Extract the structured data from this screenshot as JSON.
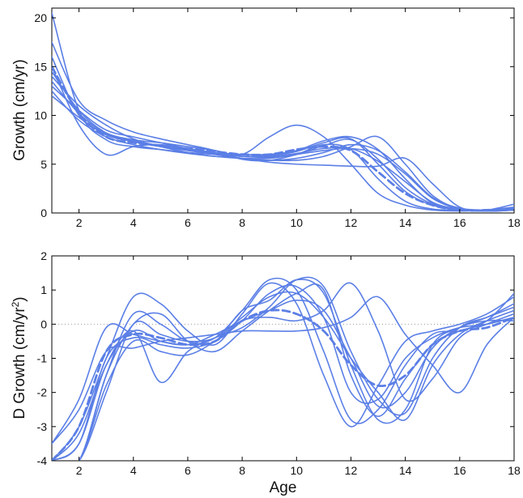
{
  "chart_data": [
    {
      "type": "line",
      "title": "",
      "xlabel": "",
      "ylabel": "Growth (cm/yr)",
      "xlim": [
        1,
        18
      ],
      "ylim": [
        0,
        21
      ],
      "xticks": [
        2,
        4,
        6,
        8,
        10,
        12,
        14,
        16,
        18
      ],
      "yticks": [
        0,
        5,
        10,
        15,
        20
      ],
      "grid": false,
      "line_color": "#5b7fe6",
      "x": [
        1,
        2,
        3,
        4,
        5,
        6,
        7,
        8,
        9,
        10,
        11,
        12,
        13,
        14,
        15,
        16,
        17,
        18
      ],
      "series": [
        {
          "values": [
            20.5,
            10.5,
            7.5,
            6.8,
            6.5,
            6.2,
            6.0,
            5.8,
            5.9,
            6.3,
            7.2,
            7.6,
            5.0,
            2.2,
            0.8,
            0.4,
            0.3,
            0.5
          ],
          "style": "solid"
        },
        {
          "values": [
            17.5,
            11.5,
            9.5,
            8.3,
            7.6,
            7.0,
            6.4,
            5.5,
            5.4,
            6.0,
            7.0,
            6.5,
            3.5,
            1.2,
            0.4,
            0.3,
            0.2,
            0.4
          ],
          "style": "solid"
        },
        {
          "values": [
            16.0,
            10.0,
            8.2,
            7.5,
            7.2,
            6.8,
            6.4,
            6.0,
            7.8,
            9.0,
            7.8,
            5.0,
            2.0,
            0.8,
            0.3,
            0.2,
            0.3,
            0.6
          ],
          "style": "solid"
        },
        {
          "values": [
            15.0,
            9.0,
            6.0,
            6.8,
            7.0,
            6.6,
            6.2,
            6.0,
            6.0,
            6.4,
            7.4,
            7.8,
            6.5,
            3.5,
            1.0,
            0.3,
            0.3,
            0.5
          ],
          "style": "solid"
        },
        {
          "values": [
            14.0,
            11.0,
            9.0,
            7.6,
            6.8,
            6.2,
            5.8,
            5.6,
            5.6,
            6.0,
            6.4,
            6.6,
            6.0,
            4.0,
            1.5,
            0.4,
            0.2,
            0.3
          ],
          "style": "solid"
        },
        {
          "values": [
            13.0,
            10.5,
            8.5,
            7.8,
            7.2,
            6.6,
            6.0,
            5.6,
            5.4,
            5.6,
            6.2,
            7.0,
            6.4,
            4.2,
            1.6,
            0.5,
            0.3,
            0.4
          ],
          "style": "solid"
        },
        {
          "values": [
            12.5,
            9.5,
            7.8,
            7.0,
            6.5,
            6.1,
            5.8,
            5.6,
            5.2,
            5.0,
            4.9,
            4.8,
            4.8,
            5.6,
            3.0,
            0.6,
            0.2,
            0.3
          ],
          "style": "solid"
        },
        {
          "values": [
            12.0,
            9.8,
            8.0,
            7.3,
            6.8,
            6.4,
            6.0,
            5.6,
            5.4,
            5.4,
            5.8,
            6.8,
            7.8,
            5.0,
            1.8,
            0.4,
            0.2,
            0.3
          ],
          "style": "solid"
        },
        {
          "values": [
            14.5,
            10.5,
            8.2,
            7.4,
            6.9,
            6.5,
            6.1,
            5.8,
            5.7,
            6.0,
            6.9,
            7.5,
            5.5,
            2.6,
            0.9,
            0.3,
            0.3,
            0.9
          ],
          "style": "solid"
        },
        {
          "values": [
            13.5,
            10.2,
            8.1,
            7.4,
            6.9,
            6.5,
            6.1,
            5.8,
            5.8,
            6.1,
            6.6,
            6.6,
            5.3,
            3.2,
            1.1,
            0.4,
            0.3,
            0.5
          ],
          "style": "solid"
        },
        {
          "values": [
            15.0,
            10.2,
            7.8,
            7.2,
            6.9,
            6.6,
            6.3,
            6.0,
            6.0,
            6.5,
            6.8,
            6.4,
            4.2,
            2.0,
            0.8,
            0.3,
            0.3,
            0.5
          ],
          "style": "dashed"
        }
      ]
    },
    {
      "type": "line",
      "title": "",
      "xlabel": "Age",
      "ylabel": "D Growth (cm/yr²)",
      "ylabel_main": "D Growth (cm/yr",
      "ylabel_sup": "2",
      "ylabel_end": ")",
      "xlim": [
        1,
        18
      ],
      "ylim": [
        -4,
        2
      ],
      "xticks": [
        2,
        4,
        6,
        8,
        10,
        12,
        14,
        16,
        18
      ],
      "yticks": [
        -4,
        -3,
        -2,
        -1,
        0,
        1,
        2
      ],
      "grid": false,
      "zero_line": "dotted",
      "line_color": "#5b7fe6",
      "x": [
        1,
        2,
        3,
        4,
        5,
        6,
        7,
        8,
        9,
        10,
        11,
        12,
        13,
        14,
        15,
        16,
        17,
        18
      ],
      "series": [
        {
          "values": [
            -3.5,
            -2.2,
            -0.1,
            -0.3,
            -0.5,
            -0.6,
            -0.4,
            0.4,
            1.3,
            1.0,
            -0.8,
            -2.8,
            -2.5,
            -1.2,
            -0.3,
            -0.2,
            0.1,
            0.9
          ],
          "style": "solid"
        },
        {
          "values": [
            -4.0,
            -3.0,
            -1.0,
            0.8,
            0.6,
            -0.2,
            -0.6,
            0.3,
            1.2,
            0.6,
            -1.5,
            -3.0,
            -1.8,
            -0.5,
            -0.2,
            0.0,
            0.3,
            0.8
          ],
          "style": "solid"
        },
        {
          "values": [
            -4.0,
            -4.0,
            -1.5,
            0.3,
            0.0,
            -0.5,
            -0.5,
            0.4,
            0.7,
            1.3,
            0.9,
            -1.2,
            -2.8,
            -2.5,
            -0.6,
            -0.1,
            0.2,
            0.6
          ],
          "style": "solid"
        },
        {
          "values": [
            -4.0,
            -3.5,
            -1.2,
            -0.2,
            -1.7,
            -0.8,
            -0.4,
            -0.1,
            0.5,
            1.3,
            1.1,
            -0.8,
            -2.2,
            -2.6,
            -1.0,
            -0.1,
            0.2,
            0.5
          ],
          "style": "solid"
        },
        {
          "values": [
            -4.0,
            -4.0,
            -2.0,
            0.0,
            -0.3,
            -0.5,
            -0.4,
            0.2,
            0.8,
            0.9,
            0.2,
            -1.0,
            -2.0,
            -2.8,
            -1.2,
            -0.3,
            0.1,
            0.4
          ],
          "style": "solid"
        },
        {
          "values": [
            -4.0,
            -4.0,
            -1.8,
            -0.5,
            -0.8,
            -0.9,
            -0.5,
            0.1,
            0.2,
            0.1,
            0.4,
            1.2,
            -0.2,
            -2.2,
            -1.6,
            -0.4,
            0.0,
            0.3
          ],
          "style": "solid"
        },
        {
          "values": [
            -3.5,
            -2.5,
            -0.8,
            -0.7,
            -0.5,
            -0.4,
            -0.3,
            -0.2,
            -0.2,
            -0.2,
            -0.1,
            0.2,
            0.8,
            -0.3,
            -1.2,
            -2.0,
            -0.6,
            0.2
          ],
          "style": "solid"
        },
        {
          "values": [
            -4.0,
            -4.0,
            -1.5,
            0.0,
            0.3,
            -0.5,
            -0.8,
            -0.2,
            0.4,
            0.9,
            1.0,
            -1.5,
            -2.7,
            -1.6,
            -0.6,
            -0.2,
            0.0,
            0.2
          ],
          "style": "solid"
        },
        {
          "values": [
            -4.0,
            -3.2,
            -1.2,
            -0.2,
            -0.5,
            -0.6,
            -0.3,
            0.1,
            0.4,
            0.7,
            0.4,
            -1.0,
            -2.4,
            -2.0,
            -0.7,
            -0.1,
            0.1,
            0.1
          ],
          "style": "solid"
        },
        {
          "values": [
            -4.0,
            -3.5,
            -1.0,
            -0.4,
            -0.6,
            -0.7,
            -0.5,
            0.1,
            0.9,
            1.1,
            0.2,
            -2.0,
            -2.2,
            -1.0,
            -0.4,
            -0.1,
            0.0,
            0.2
          ],
          "style": "solid"
        },
        {
          "values": [
            -4.0,
            -3.0,
            -0.8,
            -0.3,
            -0.4,
            -0.6,
            -0.5,
            0.1,
            0.4,
            0.3,
            -0.2,
            -1.2,
            -1.8,
            -1.5,
            -0.6,
            -0.2,
            -0.1,
            0.2
          ],
          "style": "dashed"
        }
      ]
    }
  ]
}
